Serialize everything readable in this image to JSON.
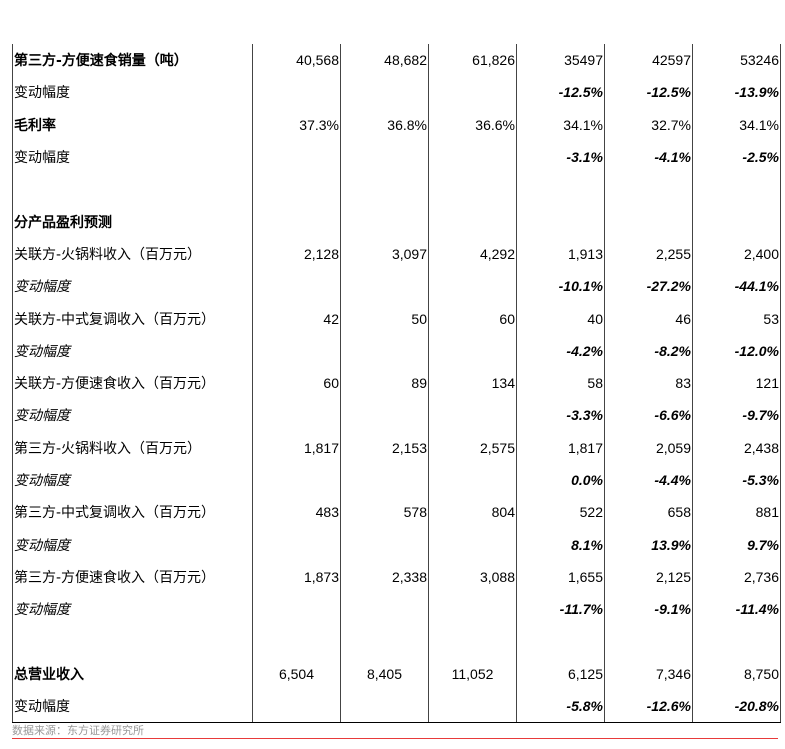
{
  "rows": [
    {
      "label": "第三方-方便速食销量（吨）",
      "style": "bold",
      "values": [
        "40,568",
        "48,682",
        "61,826",
        "35497",
        "42597",
        "53246"
      ]
    },
    {
      "label": "变动幅度",
      "style": "pct",
      "values": [
        "",
        "",
        "",
        "-12.5%",
        "-12.5%",
        "-13.9%"
      ]
    },
    {
      "label": "毛利率",
      "style": "bold",
      "values": [
        "37.3%",
        "36.8%",
        "36.6%",
        "34.1%",
        "32.7%",
        "34.1%"
      ]
    },
    {
      "label": "变动幅度",
      "style": "pct",
      "values": [
        "",
        "",
        "",
        "-3.1%",
        "-4.1%",
        "-2.5%"
      ]
    },
    {
      "label": "",
      "style": "",
      "values": [
        "",
        "",
        "",
        "",
        "",
        ""
      ]
    },
    {
      "label": "分产品盈利预测",
      "style": "bold",
      "values": [
        "",
        "",
        "",
        "",
        "",
        ""
      ]
    },
    {
      "label": "关联方-火锅料收入（百万元）",
      "style": "",
      "values": [
        "2,128",
        "3,097",
        "4,292",
        "1,913",
        "2,255",
        "2,400"
      ]
    },
    {
      "label": "变动幅度",
      "style": "ital pct",
      "values": [
        "",
        "",
        "",
        "-10.1%",
        "-27.2%",
        "-44.1%"
      ]
    },
    {
      "label": "关联方-中式复调收入（百万元）",
      "style": "",
      "values": [
        "42",
        "50",
        "60",
        "40",
        "46",
        "53"
      ]
    },
    {
      "label": "变动幅度",
      "style": "ital pct",
      "values": [
        "",
        "",
        "",
        "-4.2%",
        "-8.2%",
        "-12.0%"
      ]
    },
    {
      "label": "关联方-方便速食收入（百万元）",
      "style": "",
      "values": [
        "60",
        "89",
        "134",
        "58",
        "83",
        "121"
      ]
    },
    {
      "label": "变动幅度",
      "style": "ital pct",
      "values": [
        "",
        "",
        "",
        "-3.3%",
        "-6.6%",
        "-9.7%"
      ]
    },
    {
      "label": "第三方-火锅料收入（百万元）",
      "style": "",
      "values": [
        "1,817",
        "2,153",
        "2,575",
        "1,817",
        "2,059",
        "2,438"
      ]
    },
    {
      "label": "变动幅度",
      "style": "ital pct",
      "values": [
        "",
        "",
        "",
        "0.0%",
        "-4.4%",
        "-5.3%"
      ]
    },
    {
      "label": "第三方-中式复调收入（百万元）",
      "style": "",
      "values": [
        "483",
        "578",
        "804",
        "522",
        "658",
        "881"
      ]
    },
    {
      "label": "变动幅度",
      "style": "ital pct",
      "values": [
        "",
        "",
        "",
        "8.1%",
        "13.9%",
        "9.7%"
      ]
    },
    {
      "label": "第三方-方便速食收入（百万元）",
      "style": "",
      "values": [
        "1,873",
        "2,338",
        "3,088",
        "1,655",
        "2,125",
        "2,736"
      ]
    },
    {
      "label": "变动幅度",
      "style": "ital pct",
      "values": [
        "",
        "",
        "",
        "-11.7%",
        "-9.1%",
        "-11.4%"
      ]
    },
    {
      "label": "",
      "style": "",
      "values": [
        "",
        "",
        "",
        "",
        "",
        ""
      ]
    },
    {
      "label": "总营业收入",
      "style": "bold center3",
      "values": [
        "6,504",
        "8,405",
        "11,052",
        "6,125",
        "7,346",
        "8,750"
      ]
    },
    {
      "label": "变动幅度",
      "style": "pct",
      "values": [
        "",
        "",
        "",
        "-5.8%",
        "-12.6%",
        "-20.8%"
      ]
    }
  ],
  "source": "数据来源：东方证券研究所",
  "colors": {
    "rule": "#e83a3a",
    "source_text": "#999999"
  }
}
